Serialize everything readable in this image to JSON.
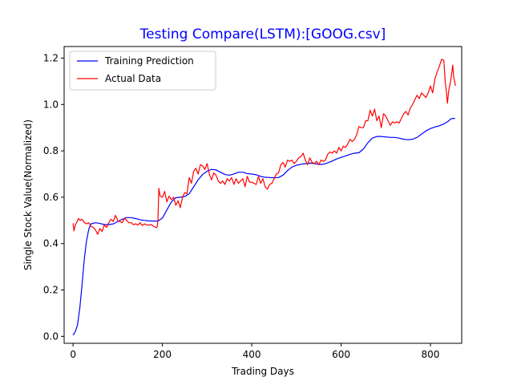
{
  "chart_data": {
    "type": "line",
    "title": "Testing Compare(LSTM):[GOOG.csv]",
    "title_color": "#0000ff",
    "xlabel": "Trading Days",
    "ylabel": "Single Stock Value(Normalized)",
    "xlim": [
      -20,
      870
    ],
    "ylim": [
      -0.03,
      1.25
    ],
    "x_ticks": [
      0,
      200,
      400,
      600,
      800
    ],
    "y_ticks": [
      0.0,
      0.2,
      0.4,
      0.6,
      0.8,
      1.0,
      1.2
    ],
    "x_tick_labels": [
      "0",
      "200",
      "400",
      "600",
      "800"
    ],
    "y_tick_labels": [
      "0.0",
      "0.2",
      "0.4",
      "0.6",
      "0.8",
      "1.0",
      "1.2"
    ],
    "grid": false,
    "legend_position": "top-left",
    "series": [
      {
        "name": "Training Prediction",
        "color": "#0000ff",
        "points": [
          [
            0,
            0.005
          ],
          [
            5,
            0.02
          ],
          [
            10,
            0.05
          ],
          [
            15,
            0.12
          ],
          [
            20,
            0.22
          ],
          [
            25,
            0.33
          ],
          [
            30,
            0.41
          ],
          [
            35,
            0.46
          ],
          [
            40,
            0.485
          ],
          [
            50,
            0.49
          ],
          [
            60,
            0.487
          ],
          [
            70,
            0.482
          ],
          [
            80,
            0.482
          ],
          [
            90,
            0.485
          ],
          [
            100,
            0.495
          ],
          [
            110,
            0.505
          ],
          [
            120,
            0.512
          ],
          [
            130,
            0.512
          ],
          [
            140,
            0.508
          ],
          [
            150,
            0.503
          ],
          [
            160,
            0.5
          ],
          [
            170,
            0.498
          ],
          [
            180,
            0.497
          ],
          [
            190,
            0.497
          ],
          [
            200,
            0.51
          ],
          [
            210,
            0.545
          ],
          [
            220,
            0.58
          ],
          [
            230,
            0.598
          ],
          [
            240,
            0.6
          ],
          [
            250,
            0.603
          ],
          [
            260,
            0.615
          ],
          [
            270,
            0.645
          ],
          [
            280,
            0.675
          ],
          [
            290,
            0.698
          ],
          [
            300,
            0.712
          ],
          [
            310,
            0.72
          ],
          [
            320,
            0.718
          ],
          [
            330,
            0.708
          ],
          [
            340,
            0.698
          ],
          [
            350,
            0.695
          ],
          [
            360,
            0.7
          ],
          [
            370,
            0.708
          ],
          [
            380,
            0.708
          ],
          [
            390,
            0.702
          ],
          [
            400,
            0.7
          ],
          [
            410,
            0.697
          ],
          [
            420,
            0.69
          ],
          [
            430,
            0.686
          ],
          [
            440,
            0.685
          ],
          [
            450,
            0.684
          ],
          [
            460,
            0.685
          ],
          [
            470,
            0.695
          ],
          [
            480,
            0.715
          ],
          [
            490,
            0.73
          ],
          [
            500,
            0.738
          ],
          [
            510,
            0.742
          ],
          [
            520,
            0.745
          ],
          [
            530,
            0.747
          ],
          [
            540,
            0.745
          ],
          [
            550,
            0.742
          ],
          [
            560,
            0.742
          ],
          [
            570,
            0.748
          ],
          [
            580,
            0.756
          ],
          [
            590,
            0.765
          ],
          [
            600,
            0.772
          ],
          [
            610,
            0.778
          ],
          [
            620,
            0.785
          ],
          [
            630,
            0.79
          ],
          [
            640,
            0.792
          ],
          [
            650,
            0.808
          ],
          [
            660,
            0.835
          ],
          [
            670,
            0.855
          ],
          [
            680,
            0.862
          ],
          [
            690,
            0.862
          ],
          [
            700,
            0.86
          ],
          [
            710,
            0.858
          ],
          [
            720,
            0.858
          ],
          [
            730,
            0.855
          ],
          [
            740,
            0.85
          ],
          [
            750,
            0.848
          ],
          [
            760,
            0.85
          ],
          [
            770,
            0.858
          ],
          [
            780,
            0.872
          ],
          [
            790,
            0.886
          ],
          [
            800,
            0.896
          ],
          [
            810,
            0.903
          ],
          [
            820,
            0.908
          ],
          [
            830,
            0.916
          ],
          [
            840,
            0.928
          ],
          [
            845,
            0.937
          ],
          [
            850,
            0.94
          ],
          [
            855,
            0.94
          ]
        ]
      },
      {
        "name": "Actual Data",
        "color": "#ff0000",
        "points": [
          [
            0,
            0.488
          ],
          [
            2,
            0.455
          ],
          [
            5,
            0.48
          ],
          [
            8,
            0.49
          ],
          [
            12,
            0.508
          ],
          [
            16,
            0.5
          ],
          [
            20,
            0.505
          ],
          [
            25,
            0.492
          ],
          [
            30,
            0.485
          ],
          [
            35,
            0.49
          ],
          [
            40,
            0.475
          ],
          [
            45,
            0.47
          ],
          [
            50,
            0.46
          ],
          [
            55,
            0.44
          ],
          [
            60,
            0.465
          ],
          [
            65,
            0.452
          ],
          [
            70,
            0.48
          ],
          [
            75,
            0.47
          ],
          [
            80,
            0.49
          ],
          [
            85,
            0.505
          ],
          [
            90,
            0.495
          ],
          [
            95,
            0.522
          ],
          [
            100,
            0.5
          ],
          [
            105,
            0.495
          ],
          [
            110,
            0.49
          ],
          [
            115,
            0.51
          ],
          [
            120,
            0.5
          ],
          [
            125,
            0.49
          ],
          [
            130,
            0.49
          ],
          [
            135,
            0.482
          ],
          [
            140,
            0.485
          ],
          [
            145,
            0.48
          ],
          [
            150,
            0.49
          ],
          [
            155,
            0.478
          ],
          [
            160,
            0.485
          ],
          [
            165,
            0.48
          ],
          [
            170,
            0.48
          ],
          [
            175,
            0.482
          ],
          [
            180,
            0.475
          ],
          [
            185,
            0.47
          ],
          [
            188,
            0.47
          ],
          [
            190,
            0.5
          ],
          [
            192,
            0.638
          ],
          [
            195,
            0.605
          ],
          [
            200,
            0.6
          ],
          [
            205,
            0.625
          ],
          [
            210,
            0.58
          ],
          [
            215,
            0.605
          ],
          [
            220,
            0.59
          ],
          [
            225,
            0.6
          ],
          [
            230,
            0.565
          ],
          [
            235,
            0.585
          ],
          [
            240,
            0.555
          ],
          [
            245,
            0.6
          ],
          [
            250,
            0.62
          ],
          [
            255,
            0.615
          ],
          [
            260,
            0.685
          ],
          [
            265,
            0.66
          ],
          [
            270,
            0.712
          ],
          [
            275,
            0.725
          ],
          [
            280,
            0.7
          ],
          [
            285,
            0.74
          ],
          [
            290,
            0.735
          ],
          [
            295,
            0.72
          ],
          [
            300,
            0.745
          ],
          [
            305,
            0.7
          ],
          [
            310,
            0.675
          ],
          [
            315,
            0.705
          ],
          [
            320,
            0.695
          ],
          [
            325,
            0.67
          ],
          [
            330,
            0.66
          ],
          [
            335,
            0.67
          ],
          [
            340,
            0.655
          ],
          [
            345,
            0.68
          ],
          [
            350,
            0.67
          ],
          [
            355,
            0.685
          ],
          [
            360,
            0.655
          ],
          [
            365,
            0.68
          ],
          [
            370,
            0.66
          ],
          [
            375,
            0.67
          ],
          [
            380,
            0.68
          ],
          [
            385,
            0.645
          ],
          [
            390,
            0.69
          ],
          [
            395,
            0.665
          ],
          [
            400,
            0.665
          ],
          [
            405,
            0.66
          ],
          [
            410,
            0.655
          ],
          [
            415,
            0.69
          ],
          [
            420,
            0.66
          ],
          [
            425,
            0.68
          ],
          [
            430,
            0.645
          ],
          [
            435,
            0.635
          ],
          [
            440,
            0.655
          ],
          [
            445,
            0.66
          ],
          [
            450,
            0.68
          ],
          [
            455,
            0.7
          ],
          [
            460,
            0.705
          ],
          [
            465,
            0.74
          ],
          [
            470,
            0.75
          ],
          [
            475,
            0.73
          ],
          [
            480,
            0.76
          ],
          [
            485,
            0.755
          ],
          [
            490,
            0.76
          ],
          [
            495,
            0.745
          ],
          [
            500,
            0.755
          ],
          [
            505,
            0.77
          ],
          [
            510,
            0.775
          ],
          [
            515,
            0.79
          ],
          [
            520,
            0.76
          ],
          [
            525,
            0.74
          ],
          [
            530,
            0.77
          ],
          [
            535,
            0.75
          ],
          [
            540,
            0.745
          ],
          [
            545,
            0.755
          ],
          [
            550,
            0.74
          ],
          [
            555,
            0.76
          ],
          [
            560,
            0.755
          ],
          [
            565,
            0.76
          ],
          [
            570,
            0.785
          ],
          [
            575,
            0.795
          ],
          [
            580,
            0.79
          ],
          [
            585,
            0.8
          ],
          [
            590,
            0.79
          ],
          [
            595,
            0.815
          ],
          [
            600,
            0.8
          ],
          [
            605,
            0.82
          ],
          [
            610,
            0.815
          ],
          [
            615,
            0.83
          ],
          [
            620,
            0.85
          ],
          [
            625,
            0.84
          ],
          [
            630,
            0.85
          ],
          [
            635,
            0.87
          ],
          [
            640,
            0.905
          ],
          [
            645,
            0.9
          ],
          [
            650,
            0.9
          ],
          [
            655,
            0.93
          ],
          [
            660,
            0.93
          ],
          [
            665,
            0.975
          ],
          [
            670,
            0.95
          ],
          [
            675,
            0.98
          ],
          [
            680,
            0.93
          ],
          [
            685,
            0.95
          ],
          [
            690,
            0.9
          ],
          [
            695,
            0.96
          ],
          [
            700,
            0.95
          ],
          [
            705,
            0.93
          ],
          [
            710,
            0.91
          ],
          [
            715,
            0.925
          ],
          [
            720,
            0.92
          ],
          [
            725,
            0.925
          ],
          [
            730,
            0.92
          ],
          [
            735,
            0.94
          ],
          [
            740,
            0.96
          ],
          [
            745,
            0.97
          ],
          [
            750,
            0.955
          ],
          [
            755,
            0.985
          ],
          [
            760,
            1.0
          ],
          [
            765,
            1.02
          ],
          [
            770,
            1.04
          ],
          [
            775,
            1.025
          ],
          [
            780,
            1.05
          ],
          [
            785,
            1.04
          ],
          [
            790,
            1.03
          ],
          [
            795,
            1.05
          ],
          [
            800,
            1.08
          ],
          [
            805,
            1.05
          ],
          [
            810,
            1.11
          ],
          [
            815,
            1.14
          ],
          [
            820,
            1.165
          ],
          [
            825,
            1.195
          ],
          [
            830,
            1.19
          ],
          [
            833,
            1.1
          ],
          [
            836,
            1.05
          ],
          [
            838,
            1.005
          ],
          [
            841,
            1.06
          ],
          [
            845,
            1.1
          ],
          [
            848,
            1.14
          ],
          [
            850,
            1.17
          ],
          [
            852,
            1.12
          ],
          [
            855,
            1.09
          ],
          [
            856,
            1.08
          ]
        ]
      }
    ]
  }
}
